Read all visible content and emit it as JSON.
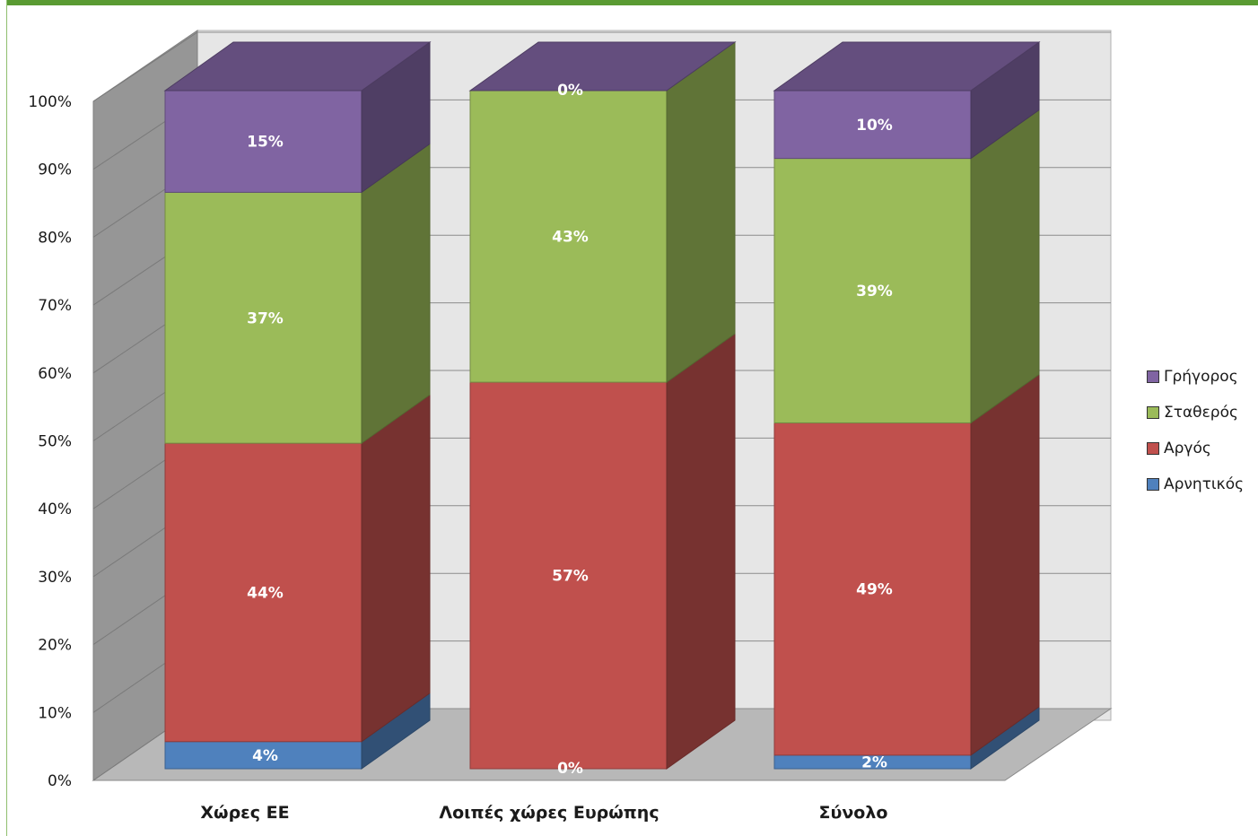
{
  "chart_data": {
    "type": "bar",
    "stacked": true,
    "three_d": true,
    "categories": [
      "Χώρες ΕΕ",
      "Λοιπές χώρες Ευρώπης",
      "Σύνολο"
    ],
    "series": [
      {
        "name": "Αρνητικός",
        "values": [
          4,
          0,
          2
        ],
        "color": "#4f81bd"
      },
      {
        "name": "Αργός",
        "values": [
          44,
          57,
          49
        ],
        "color": "#c0504d"
      },
      {
        "name": "Σταθερός",
        "values": [
          37,
          43,
          39
        ],
        "color": "#9bbb59"
      },
      {
        "name": "Γρήγορος",
        "values": [
          15,
          0,
          10
        ],
        "color": "#8064a2"
      }
    ],
    "data_labels": [
      [
        "4%",
        "0%",
        "2%"
      ],
      [
        "44%",
        "57%",
        "49%"
      ],
      [
        "37%",
        "43%",
        "39%"
      ],
      [
        "15%",
        "0%",
        "10%"
      ]
    ],
    "y_ticks": [
      "0%",
      "10%",
      "20%",
      "30%",
      "40%",
      "50%",
      "60%",
      "70%",
      "80%",
      "90%",
      "100%"
    ],
    "ylim": [
      0,
      100
    ],
    "grid": true,
    "legend_position": "right"
  },
  "legend": {
    "items": [
      {
        "label": "Γρήγορος",
        "color": "#8064a2"
      },
      {
        "label": "Σταθερός",
        "color": "#9bbb59"
      },
      {
        "label": "Αργός",
        "color": "#c0504d"
      },
      {
        "label": "Αρνητικός",
        "color": "#4f81bd"
      }
    ]
  }
}
